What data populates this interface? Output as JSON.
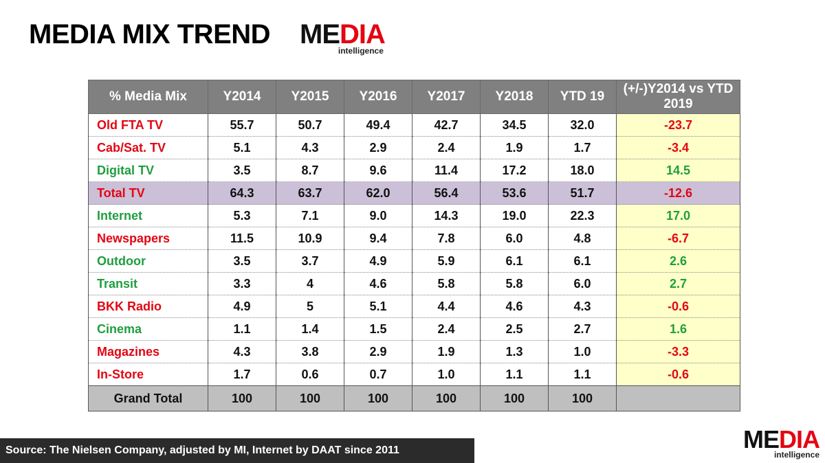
{
  "title": "MEDIA MIX TREND",
  "logo": {
    "part1": "ME",
    "part2": "DIA",
    "tagline": "intelligence"
  },
  "colors": {
    "negative": "#e30613",
    "positive": "#1f9e3e",
    "header_bg": "#808080",
    "diff_bg": "#ffffc9",
    "total_tv_bg": "#cbc0d8",
    "grand_total_bg": "#bfbfbf"
  },
  "table": {
    "headers": [
      "% Media Mix",
      "Y2014",
      "Y2015",
      "Y2016",
      "Y2017",
      "Y2018",
      "YTD 19",
      "(+/-)Y2014 vs YTD 2019"
    ],
    "rows": [
      {
        "label": "Old FTA TV",
        "values": [
          "55.7",
          "50.7",
          "49.4",
          "42.7",
          "34.5",
          "32.0"
        ],
        "diff": "-23.7",
        "trend": "negative"
      },
      {
        "label": "Cab/Sat. TV",
        "values": [
          "5.1",
          "4.3",
          "2.9",
          "2.4",
          "1.9",
          "1.7"
        ],
        "diff": "-3.4",
        "trend": "negative"
      },
      {
        "label": "Digital TV",
        "values": [
          "3.5",
          "8.7",
          "9.6",
          "11.4",
          "17.2",
          "18.0"
        ],
        "diff": "14.5",
        "trend": "positive"
      },
      {
        "label": "Total TV",
        "values": [
          "64.3",
          "63.7",
          "62.0",
          "56.4",
          "53.6",
          "51.7"
        ],
        "diff": "-12.6",
        "trend": "negative",
        "highlight": true
      },
      {
        "label": "Internet",
        "values": [
          "5.3",
          "7.1",
          "9.0",
          "14.3",
          "19.0",
          "22.3"
        ],
        "diff": "17.0",
        "trend": "positive"
      },
      {
        "label": "Newspapers",
        "values": [
          "11.5",
          "10.9",
          "9.4",
          "7.8",
          "6.0",
          "4.8"
        ],
        "diff": "-6.7",
        "trend": "negative"
      },
      {
        "label": "Outdoor",
        "values": [
          "3.5",
          "3.7",
          "4.9",
          "5.9",
          "6.1",
          "6.1"
        ],
        "diff": "2.6",
        "trend": "positive"
      },
      {
        "label": "Transit",
        "values": [
          "3.3",
          "4",
          "4.6",
          "5.8",
          "5.8",
          "6.0"
        ],
        "diff": "2.7",
        "trend": "positive"
      },
      {
        "label": "BKK Radio",
        "values": [
          "4.9",
          "5",
          "5.1",
          "4.4",
          "4.6",
          "4.3"
        ],
        "diff": "-0.6",
        "trend": "negative"
      },
      {
        "label": "Cinema",
        "values": [
          "1.1",
          "1.4",
          "1.5",
          "2.4",
          "2.5",
          "2.7"
        ],
        "diff": "1.6",
        "trend": "positive"
      },
      {
        "label": "Magazines",
        "values": [
          "4.3",
          "3.8",
          "2.9",
          "1.9",
          "1.3",
          "1.0"
        ],
        "diff": "-3.3",
        "trend": "negative"
      },
      {
        "label": "In-Store",
        "values": [
          "1.7",
          "0.6",
          "0.7",
          "1.0",
          "1.1",
          "1.1"
        ],
        "diff": "-0.6",
        "trend": "negative"
      }
    ],
    "grand_total": {
      "label": "Grand Total",
      "values": [
        "100",
        "100",
        "100",
        "100",
        "100",
        "100"
      ],
      "diff": ""
    }
  },
  "source": "Source: The Nielsen Company, adjusted by MI, Internet by DAAT since 2011"
}
